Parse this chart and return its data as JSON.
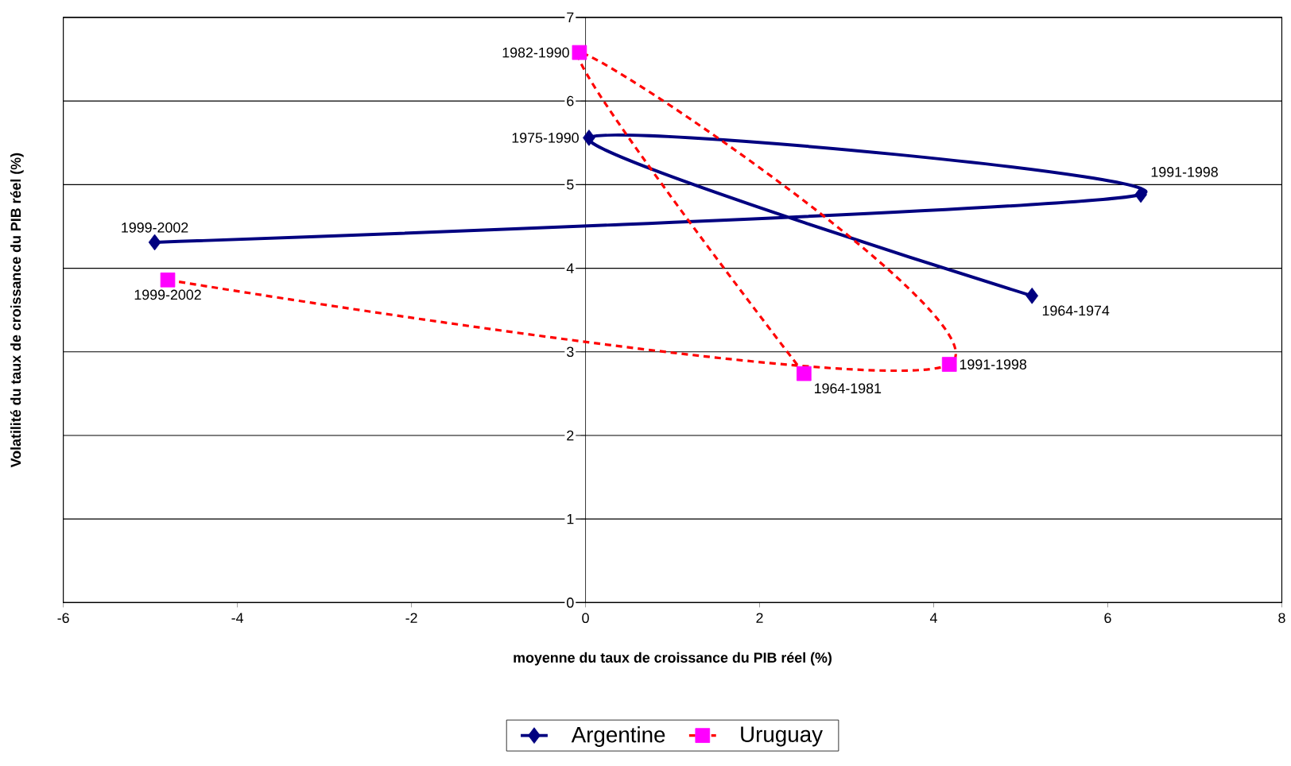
{
  "chart_data": {
    "type": "line",
    "xlabel": "moyenne du taux de croissance du PIB réel (%)",
    "ylabel": "Volatilité du taux de croissance du PIB réel (%)",
    "xlim": [
      -6,
      8
    ],
    "xticks": [
      -6,
      -4,
      -2,
      0,
      2,
      4,
      6,
      8
    ],
    "ylim": [
      0,
      7
    ],
    "yticks": [
      0,
      1,
      2,
      3,
      4,
      5,
      6,
      7
    ],
    "grid": "y",
    "legend": "bottom",
    "series": [
      {
        "name": "Argentine",
        "color": "#000080",
        "marker": "diamond",
        "line_style": "solid",
        "x": [
          5.13,
          0.04,
          6.38,
          -4.95
        ],
        "values": [
          3.67,
          5.56,
          4.88,
          4.31
        ]
      },
      {
        "name": "Uruguay",
        "color": "#ff0000",
        "colors": [
          "#ff00ff",
          "#ff00ff",
          "#ff00ff",
          "#ff00ff"
        ],
        "marker": "square",
        "line_style": "dashed",
        "x": [
          2.51,
          -0.07,
          4.18,
          -4.8
        ],
        "values": [
          2.74,
          6.58,
          2.85,
          3.86
        ]
      }
    ],
    "annotations": [
      {
        "text": "1964-1974",
        "x": 5.13,
        "y": 3.67
      },
      {
        "text": "1975-1990",
        "x": 0.04,
        "y": 5.56
      },
      {
        "text": "1991-1998",
        "x": 6.38,
        "y": 4.88
      },
      {
        "text": "1999-2002",
        "x": -4.95,
        "y": 4.31
      },
      {
        "text": "1964-1981",
        "x": 2.51,
        "y": 2.74
      },
      {
        "text": "1982-1990",
        "x": -0.07,
        "y": 6.58
      },
      {
        "text": "1991-1998",
        "x": 4.18,
        "y": 2.85
      },
      {
        "text": "1999-2002",
        "x": -4.8,
        "y": 3.86
      }
    ]
  }
}
